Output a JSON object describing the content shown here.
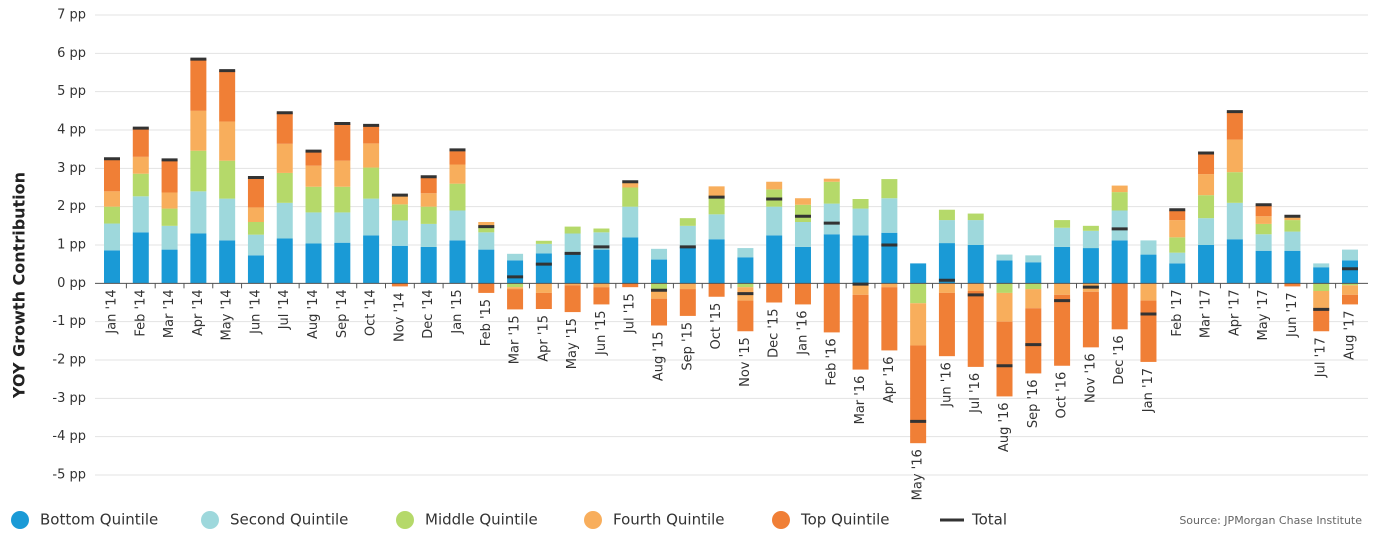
{
  "chart_data": {
    "type": "stacked-bar",
    "y_label": "YOY Growth Contribution",
    "source": "Source:  JPMorgan Chase Institute",
    "grid": true,
    "ylim": [
      -5,
      7
    ],
    "yticks": [
      {
        "value": -5,
        "label": "-5 pp"
      },
      {
        "value": -4,
        "label": "-4 pp"
      },
      {
        "value": -3,
        "label": "-3 pp"
      },
      {
        "value": -2,
        "label": "-2 pp"
      },
      {
        "value": -1,
        "label": "-1 pp"
      },
      {
        "value": 0,
        "label": "0 pp"
      },
      {
        "value": 1,
        "label": "1 pp"
      },
      {
        "value": 2,
        "label": "2 pp"
      },
      {
        "value": 3,
        "label": "3 pp"
      },
      {
        "value": 4,
        "label": "4 pp"
      },
      {
        "value": 5,
        "label": "5 pp"
      },
      {
        "value": 6,
        "label": "6 pp"
      },
      {
        "value": 7,
        "label": "7 pp"
      }
    ],
    "categories": [
      "Jan '14",
      "Feb '14",
      "Mar '14",
      "Apr '14",
      "May '14",
      "Jun '14",
      "Jul '14",
      "Aug '14",
      "Sep '14",
      "Oct '14",
      "Nov '14",
      "Dec '14",
      "Jan '15",
      "Feb '15",
      "Mar '15",
      "Apr '15",
      "May '15",
      "Jun '15",
      "Jul '15",
      "Aug '15",
      "Sep '15",
      "Oct '15",
      "Nov '15",
      "Dec '15",
      "Jan '16",
      "Feb '16",
      "Mar '16",
      "Apr '16",
      "May '16",
      "Jun '16",
      "Jul '16",
      "Aug '16",
      "Sep '16",
      "Oct '16",
      "Nov '16",
      "Dec '16",
      "Jan '17",
      "Feb '17",
      "Mar '17",
      "Apr '17",
      "May '17",
      "Jun '17",
      "Jul '17",
      "Aug '17"
    ],
    "series": [
      {
        "name": "Bottom Quintile",
        "color": "#1a9ad6",
        "values": [
          0.86,
          1.33,
          0.88,
          1.3,
          1.12,
          0.73,
          1.17,
          1.04,
          1.06,
          1.25,
          0.98,
          0.95,
          1.12,
          0.88,
          0.6,
          0.78,
          0.8,
          0.88,
          1.2,
          0.62,
          0.95,
          1.15,
          0.68,
          1.25,
          0.95,
          1.28,
          1.25,
          1.32,
          0.52,
          1.05,
          1.0,
          0.6,
          0.55,
          0.95,
          0.92,
          1.12,
          0.75,
          0.52,
          1.0,
          1.15,
          0.85,
          0.85,
          0.42,
          0.6
        ]
      },
      {
        "name": "Second Quintile",
        "color": "#9ed8dc",
        "values": [
          0.7,
          0.94,
          0.62,
          1.1,
          1.09,
          0.54,
          0.93,
          0.81,
          0.79,
          0.96,
          0.66,
          0.6,
          0.78,
          0.45,
          0.17,
          0.25,
          0.5,
          0.45,
          0.8,
          0.28,
          0.55,
          0.65,
          0.24,
          0.75,
          0.65,
          0.8,
          0.7,
          0.9,
          0,
          0.6,
          0.65,
          0.15,
          0.18,
          0.5,
          0.45,
          0.78,
          0.37,
          0.28,
          0.7,
          0.95,
          0.43,
          0.5,
          0.1,
          0.28
        ]
      },
      {
        "name": "Middle Quintile",
        "color": "#b5d96a",
        "values": [
          0.44,
          0.59,
          0.45,
          1.06,
          0.99,
          0.33,
          0.78,
          0.67,
          0.67,
          0.81,
          0.42,
          0.45,
          0.7,
          0.15,
          -0.1,
          0.08,
          0.18,
          0.1,
          0.5,
          -0.15,
          0.2,
          0.45,
          -0.1,
          0.45,
          0.45,
          0.57,
          0.25,
          0.5,
          -0.52,
          0.27,
          0.17,
          -0.25,
          -0.15,
          0.2,
          0.13,
          0.48,
          0,
          0.4,
          0.6,
          0.8,
          0.27,
          0.3,
          -0.2,
          -0.05
        ]
      },
      {
        "name": "Fourth Quintile",
        "color": "#f8ae5c",
        "values": [
          0.4,
          0.44,
          0.42,
          1.04,
          1.02,
          0.38,
          0.76,
          0.55,
          0.68,
          0.63,
          0.24,
          0.35,
          0.5,
          0.12,
          -0.05,
          -0.25,
          -0.05,
          -0.1,
          0.12,
          -0.25,
          -0.15,
          0.28,
          -0.35,
          0.2,
          0.17,
          0.08,
          -0.3,
          -0.1,
          -1.1,
          -0.25,
          -0.2,
          -0.75,
          -0.5,
          -0.3,
          -0.22,
          0.17,
          -0.45,
          0.45,
          0.55,
          0.85,
          0.2,
          0.08,
          -0.45,
          -0.25
        ]
      },
      {
        "name": "Top Quintile",
        "color": "#f07f36",
        "values": [
          0.85,
          0.75,
          0.85,
          1.35,
          1.33,
          0.78,
          0.81,
          0.38,
          0.97,
          0.47,
          -0.08,
          0.4,
          0.35,
          -0.25,
          -0.53,
          -0.42,
          -0.7,
          -0.45,
          -0.1,
          -0.7,
          -0.7,
          -0.35,
          -0.8,
          -0.5,
          -0.55,
          -1.28,
          -1.95,
          -1.65,
          -2.55,
          -1.65,
          -1.98,
          -1.95,
          -1.7,
          -1.85,
          -1.45,
          -1.2,
          -1.6,
          0.25,
          0.52,
          0.72,
          0.3,
          -0.08,
          -0.6,
          -0.25
        ]
      },
      {
        "name": "Total",
        "color": "#333333",
        "style": "line",
        "values": [
          3.25,
          4.05,
          3.22,
          5.85,
          5.55,
          2.76,
          4.45,
          3.45,
          4.17,
          4.12,
          2.3,
          2.78,
          3.48,
          1.48,
          0.17,
          0.5,
          0.78,
          0.95,
          2.65,
          -0.18,
          0.95,
          2.25,
          -0.27,
          2.2,
          1.75,
          1.57,
          -0.02,
          1.0,
          -3.6,
          0.08,
          -0.3,
          -2.15,
          -1.6,
          -0.45,
          -0.1,
          1.42,
          -0.8,
          1.92,
          3.4,
          4.48,
          2.05,
          1.75,
          -0.68,
          0.38
        ]
      }
    ]
  }
}
